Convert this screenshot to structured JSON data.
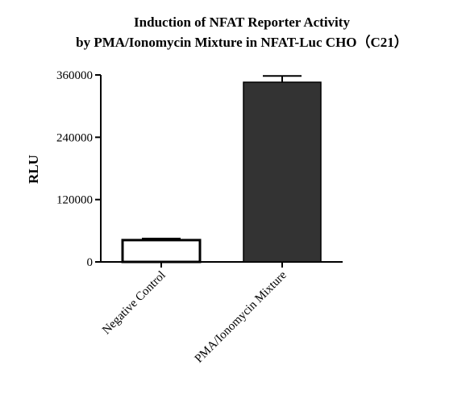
{
  "chart_data": {
    "type": "bar",
    "title": [
      "Induction of NFAT Reporter Activity",
      "by PMA/Ionomycin Mixture in NFAT-Luc CHO（C21）"
    ],
    "xlabel": "",
    "ylabel": "RLU",
    "categories": [
      "Negative Control",
      "PMA/Ionomycin Mixture"
    ],
    "values": [
      42000,
      346000
    ],
    "errors": [
      3000,
      12000
    ],
    "bar_fills": [
      "#ffffff",
      "#333333"
    ],
    "ylim": [
      0,
      360000
    ],
    "yticks": [
      "0",
      "120000",
      "240000",
      "360000"
    ],
    "grid": false
  }
}
